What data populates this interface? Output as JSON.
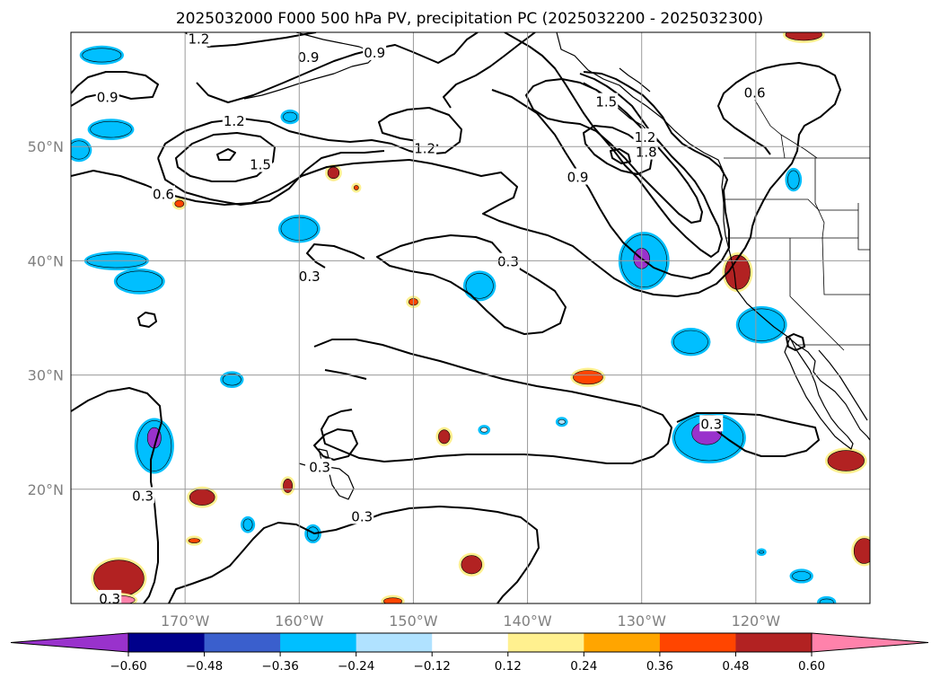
{
  "title": "2025032000 F000 500 hPa PV, precipitation PC (2025032200 - 2025032300)",
  "chart_data": {
    "type": "map",
    "projection": "equirectangular",
    "lon_range": [
      -180,
      -110
    ],
    "lat_range": [
      10,
      60
    ],
    "grid": true,
    "xticks": [
      {
        "value": -170,
        "label": "170°W"
      },
      {
        "value": -160,
        "label": "160°W"
      },
      {
        "value": -150,
        "label": "150°W"
      },
      {
        "value": -140,
        "label": "140°W"
      },
      {
        "value": -130,
        "label": "130°W"
      },
      {
        "value": -120,
        "label": "120°W"
      }
    ],
    "yticks": [
      {
        "value": 20,
        "label": "20°N"
      },
      {
        "value": 30,
        "label": "30°N"
      },
      {
        "value": 40,
        "label": "40°N"
      },
      {
        "value": 50,
        "label": "50°N"
      }
    ],
    "contour_labels": [
      {
        "text": "1.2",
        "lon": -168.8,
        "lat": 59.4
      },
      {
        "text": "0.9",
        "lon": -159.2,
        "lat": 57.8
      },
      {
        "text": "0.9",
        "lon": -153.4,
        "lat": 58.2
      },
      {
        "text": "0.9",
        "lon": -176.8,
        "lat": 54.3
      },
      {
        "text": "1.2",
        "lon": -165.7,
        "lat": 52.2
      },
      {
        "text": "1.5",
        "lon": -163.4,
        "lat": 48.4
      },
      {
        "text": "1.2",
        "lon": -149.0,
        "lat": 49.8
      },
      {
        "text": "0.6",
        "lon": -171.9,
        "lat": 45.8
      },
      {
        "text": "1.5",
        "lon": -133.1,
        "lat": 53.9
      },
      {
        "text": "1.2",
        "lon": -129.7,
        "lat": 50.8
      },
      {
        "text": "1.8",
        "lon": -129.6,
        "lat": 49.5
      },
      {
        "text": "0.9",
        "lon": -135.6,
        "lat": 47.3
      },
      {
        "text": "0.6",
        "lon": -120.1,
        "lat": 54.7
      },
      {
        "text": "0.3",
        "lon": -141.7,
        "lat": 39.9
      },
      {
        "text": "0.3",
        "lon": -159.1,
        "lat": 38.6
      },
      {
        "text": "0.3",
        "lon": -123.9,
        "lat": 25.7
      },
      {
        "text": "0.3",
        "lon": -173.7,
        "lat": 19.4
      },
      {
        "text": "0.3",
        "lon": -158.2,
        "lat": 21.9
      },
      {
        "text": "0.3",
        "lon": -154.5,
        "lat": 17.6
      },
      {
        "text": "0.3",
        "lon": -176.6,
        "lat": 10.4
      }
    ],
    "precip_blobs": [
      {
        "lon": -177.3,
        "lat": 58.0,
        "rx": 1.7,
        "ry": 0.6,
        "value": -0.36
      },
      {
        "lon": -176.5,
        "lat": 51.5,
        "rx": 1.8,
        "ry": 0.7,
        "value": -0.36
      },
      {
        "lon": -179.3,
        "lat": 49.7,
        "rx": 0.9,
        "ry": 0.8,
        "value": -0.36
      },
      {
        "lon": -160.8,
        "lat": 52.6,
        "rx": 0.6,
        "ry": 0.4,
        "value": -0.36
      },
      {
        "lon": -157.0,
        "lat": 47.7,
        "rx": 0.5,
        "ry": 0.5,
        "value": 0.48
      },
      {
        "lon": -170.5,
        "lat": 45.0,
        "rx": 0.4,
        "ry": 0.3,
        "value": 0.36
      },
      {
        "lon": -155.0,
        "lat": 46.4,
        "rx": 0.2,
        "ry": 0.2,
        "value": 0.36
      },
      {
        "lon": -160.0,
        "lat": 42.8,
        "rx": 1.6,
        "ry": 1.0,
        "value": -0.36
      },
      {
        "lon": -176.0,
        "lat": 40.0,
        "rx": 2.6,
        "ry": 0.6,
        "value": -0.36
      },
      {
        "lon": -174.0,
        "lat": 38.2,
        "rx": 2.0,
        "ry": 0.9,
        "value": -0.36
      },
      {
        "lon": -144.2,
        "lat": 37.8,
        "rx": 1.2,
        "ry": 1.1,
        "value": -0.36
      },
      {
        "lon": -150.0,
        "lat": 36.4,
        "rx": 0.4,
        "ry": 0.3,
        "value": 0.36
      },
      {
        "lon": -129.8,
        "lat": 40.0,
        "rx": 2.0,
        "ry": 2.3,
        "value": -0.36
      },
      {
        "lon": -130.0,
        "lat": 40.2,
        "rx": 0.7,
        "ry": 0.9,
        "value": -0.6
      },
      {
        "lon": -121.6,
        "lat": 39.0,
        "rx": 1.1,
        "ry": 1.5,
        "value": 0.48
      },
      {
        "lon": -116.7,
        "lat": 47.1,
        "rx": 0.5,
        "ry": 0.8,
        "value": -0.36
      },
      {
        "lon": -119.5,
        "lat": 34.4,
        "rx": 2.0,
        "ry": 1.4,
        "value": -0.36
      },
      {
        "lon": -125.7,
        "lat": 32.9,
        "rx": 1.5,
        "ry": 1.0,
        "value": -0.36
      },
      {
        "lon": -134.7,
        "lat": 29.8,
        "rx": 1.3,
        "ry": 0.6,
        "value": 0.36
      },
      {
        "lon": -165.9,
        "lat": 29.6,
        "rx": 0.8,
        "ry": 0.5,
        "value": -0.36
      },
      {
        "lon": -124.1,
        "lat": 24.5,
        "rx": 3.0,
        "ry": 2.0,
        "value": -0.36
      },
      {
        "lon": -124.3,
        "lat": 24.9,
        "rx": 1.3,
        "ry": 1.0,
        "value": -0.6
      },
      {
        "lon": -172.7,
        "lat": 23.8,
        "rx": 1.5,
        "ry": 2.2,
        "value": -0.36
      },
      {
        "lon": -172.7,
        "lat": 24.5,
        "rx": 0.6,
        "ry": 0.9,
        "value": -0.6
      },
      {
        "lon": -147.3,
        "lat": 24.6,
        "rx": 0.5,
        "ry": 0.6,
        "value": 0.48
      },
      {
        "lon": -143.8,
        "lat": 25.2,
        "rx": 0.3,
        "ry": 0.2,
        "value": -0.12
      },
      {
        "lon": -137.0,
        "lat": 25.9,
        "rx": 0.3,
        "ry": 0.2,
        "value": -0.24
      },
      {
        "lon": -112.1,
        "lat": 22.5,
        "rx": 1.6,
        "ry": 0.9,
        "value": 0.48
      },
      {
        "lon": -161.0,
        "lat": 20.3,
        "rx": 0.4,
        "ry": 0.6,
        "value": 0.48
      },
      {
        "lon": -168.5,
        "lat": 19.3,
        "rx": 1.1,
        "ry": 0.7,
        "value": 0.48
      },
      {
        "lon": -175.8,
        "lat": 12.2,
        "rx": 2.2,
        "ry": 1.6,
        "value": 0.48
      },
      {
        "lon": -175.9,
        "lat": 10.3,
        "rx": 1.5,
        "ry": 0.4,
        "value": 0.6
      },
      {
        "lon": -144.9,
        "lat": 13.4,
        "rx": 0.9,
        "ry": 0.8,
        "value": 0.48
      },
      {
        "lon": -158.8,
        "lat": 16.1,
        "rx": 0.5,
        "ry": 0.6,
        "value": -0.36
      },
      {
        "lon": -169.2,
        "lat": 15.5,
        "rx": 0.5,
        "ry": 0.2,
        "value": 0.36
      },
      {
        "lon": -164.5,
        "lat": 16.9,
        "rx": 0.4,
        "ry": 0.5,
        "value": -0.36
      },
      {
        "lon": -116.0,
        "lat": 12.4,
        "rx": 0.8,
        "ry": 0.4,
        "value": -0.36
      },
      {
        "lon": -110.5,
        "lat": 14.6,
        "rx": 0.9,
        "ry": 1.1,
        "value": 0.48
      },
      {
        "lon": -119.5,
        "lat": 14.5,
        "rx": 0.2,
        "ry": 0.1,
        "value": -0.36
      },
      {
        "lon": -151.8,
        "lat": 10.2,
        "rx": 0.8,
        "ry": 0.3,
        "value": 0.36
      },
      {
        "lon": -113.8,
        "lat": 10.1,
        "rx": 0.6,
        "ry": 0.3,
        "value": -0.36
      },
      {
        "lon": -115.8,
        "lat": 59.8,
        "rx": 1.6,
        "ry": 0.5,
        "value": 0.48
      }
    ],
    "colorbar": {
      "ticks": [
        "−0.60",
        "−0.48",
        "−0.36",
        "−0.24",
        "−0.12",
        "0.12",
        "0.24",
        "0.36",
        "0.48",
        "0.60"
      ],
      "colors": [
        "#9932cc",
        "#00008b",
        "#3a5fcd",
        "#00bfff",
        "#b0e2ff",
        "#ffffff",
        "#fff08f",
        "#ffa500",
        "#ff4500",
        "#b22222",
        "#ff82ab"
      ]
    }
  }
}
